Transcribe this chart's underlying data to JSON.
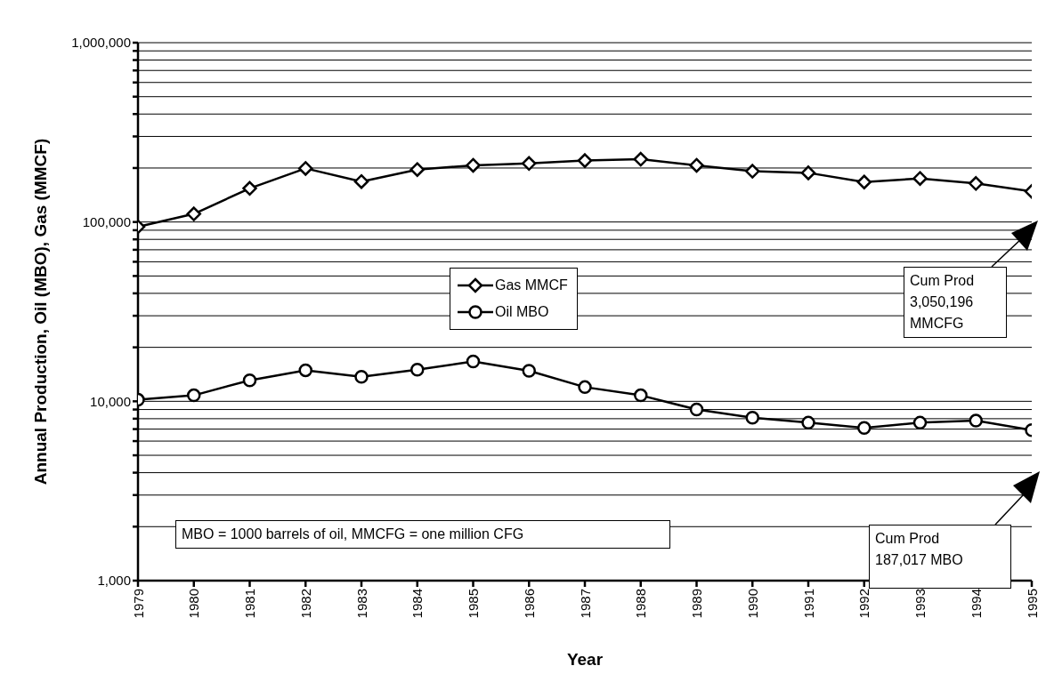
{
  "chart_data": {
    "type": "line",
    "xlabel": "Year",
    "ylabel": "Annual Production, Oil (MBO), Gas (MMCF)",
    "categories": [
      "1979",
      "1980",
      "1981",
      "1982",
      "1983",
      "1984",
      "1985",
      "1986",
      "1987",
      "1988",
      "1989",
      "1990",
      "1991",
      "1992",
      "1993",
      "1994",
      "1995"
    ],
    "series": [
      {
        "name": "Gas MMCF",
        "color": "#000000",
        "marker": "diamond",
        "values": [
          94000,
          111000,
          154000,
          199000,
          168000,
          196000,
          207000,
          212000,
          220000,
          224000,
          207000,
          192000,
          188000,
          167000,
          175000,
          164000,
          148000
        ]
      },
      {
        "name": "Oil MBO",
        "color": "#000000",
        "marker": "circle",
        "values": [
          10200,
          10800,
          13100,
          14900,
          13700,
          15000,
          16700,
          14800,
          12000,
          10800,
          9000,
          8100,
          7600,
          7100,
          7600,
          7800,
          6900
        ]
      }
    ],
    "log": "y",
    "ylim": [
      1000,
      1000000
    ],
    "yticks": [
      {
        "value": 1000,
        "label": "1,000"
      },
      {
        "value": 2000,
        "label": null
      },
      {
        "value": 3000,
        "label": null
      },
      {
        "value": 4000,
        "label": null
      },
      {
        "value": 5000,
        "label": null
      },
      {
        "value": 6000,
        "label": null
      },
      {
        "value": 7000,
        "label": null
      },
      {
        "value": 8000,
        "label": null
      },
      {
        "value": 9000,
        "label": null
      },
      {
        "value": 10000,
        "label": "10,000"
      },
      {
        "value": 20000,
        "label": null
      },
      {
        "value": 30000,
        "label": null
      },
      {
        "value": 40000,
        "label": null
      },
      {
        "value": 50000,
        "label": null
      },
      {
        "value": 60000,
        "label": null
      },
      {
        "value": 70000,
        "label": null
      },
      {
        "value": 80000,
        "label": null
      },
      {
        "value": 90000,
        "label": null
      },
      {
        "value": 100000,
        "label": "100,000"
      },
      {
        "value": 200000,
        "label": null
      },
      {
        "value": 300000,
        "label": null
      },
      {
        "value": 400000,
        "label": null
      },
      {
        "value": 500000,
        "label": null
      },
      {
        "value": 600000,
        "label": null
      },
      {
        "value": 700000,
        "label": null
      },
      {
        "value": 800000,
        "label": null
      },
      {
        "value": 900000,
        "label": null
      },
      {
        "value": 1000000,
        "label": "1,000,000"
      }
    ],
    "grid": "y",
    "legend": "center",
    "line_style": "solid",
    "annotations": [
      "MBO = 1000 barrels of oil, MMCFG = one million CFG",
      "Cum Prod\n3,050,196\nMMCFG",
      "Cum Prod\n187,017 MBO"
    ]
  }
}
